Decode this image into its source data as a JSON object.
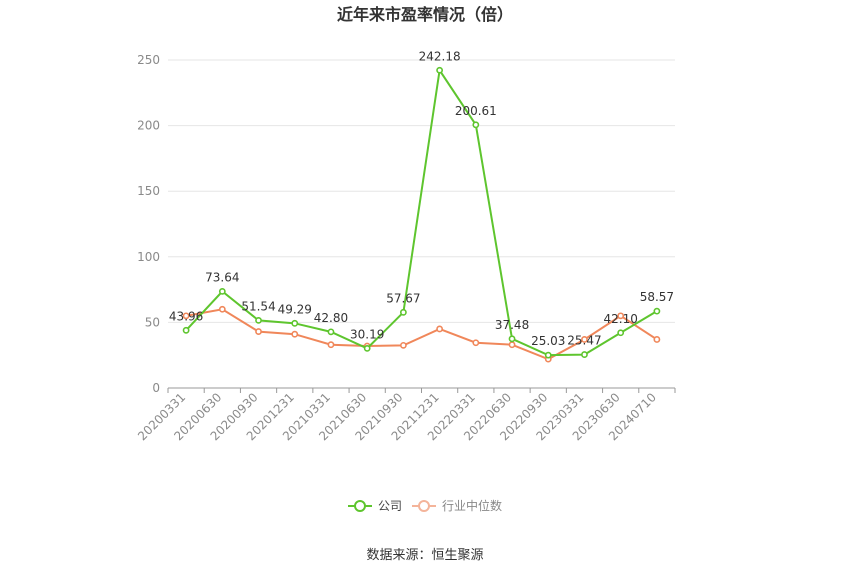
{
  "chart_data": {
    "type": "line",
    "title": "近年来市盈率情况（倍）",
    "categories": [
      "20200331",
      "20200630",
      "20200930",
      "20201231",
      "20210331",
      "20210630",
      "20210930",
      "20211231",
      "20220331",
      "20220630",
      "20220930",
      "20230331",
      "20230630",
      "20240710"
    ],
    "series": [
      {
        "name": "公司",
        "color": "#5ec52e",
        "values": [
          43.96,
          73.64,
          51.54,
          49.29,
          42.8,
          30.19,
          57.67,
          242.18,
          200.61,
          37.48,
          25.03,
          25.47,
          42.1,
          58.57
        ],
        "labels": [
          "43.96",
          "73.64",
          "51.54",
          "49.29",
          "42.80",
          "30.19",
          "57.67",
          "242.18",
          "200.61",
          "37.48",
          "25.03",
          "25.47",
          "42.10",
          "58.57"
        ]
      },
      {
        "name": "行业中位数",
        "color": "#f0875a",
        "values": [
          55,
          60,
          43,
          41,
          33,
          32,
          32.5,
          45,
          34.5,
          33,
          22,
          37,
          55,
          37
        ]
      }
    ],
    "ylim": [
      0,
      250
    ],
    "yticks": [
      0,
      50,
      100,
      150,
      200,
      250
    ],
    "grid": true,
    "legend_position": "bottom-center"
  },
  "source": "数据来源：恒生聚源"
}
